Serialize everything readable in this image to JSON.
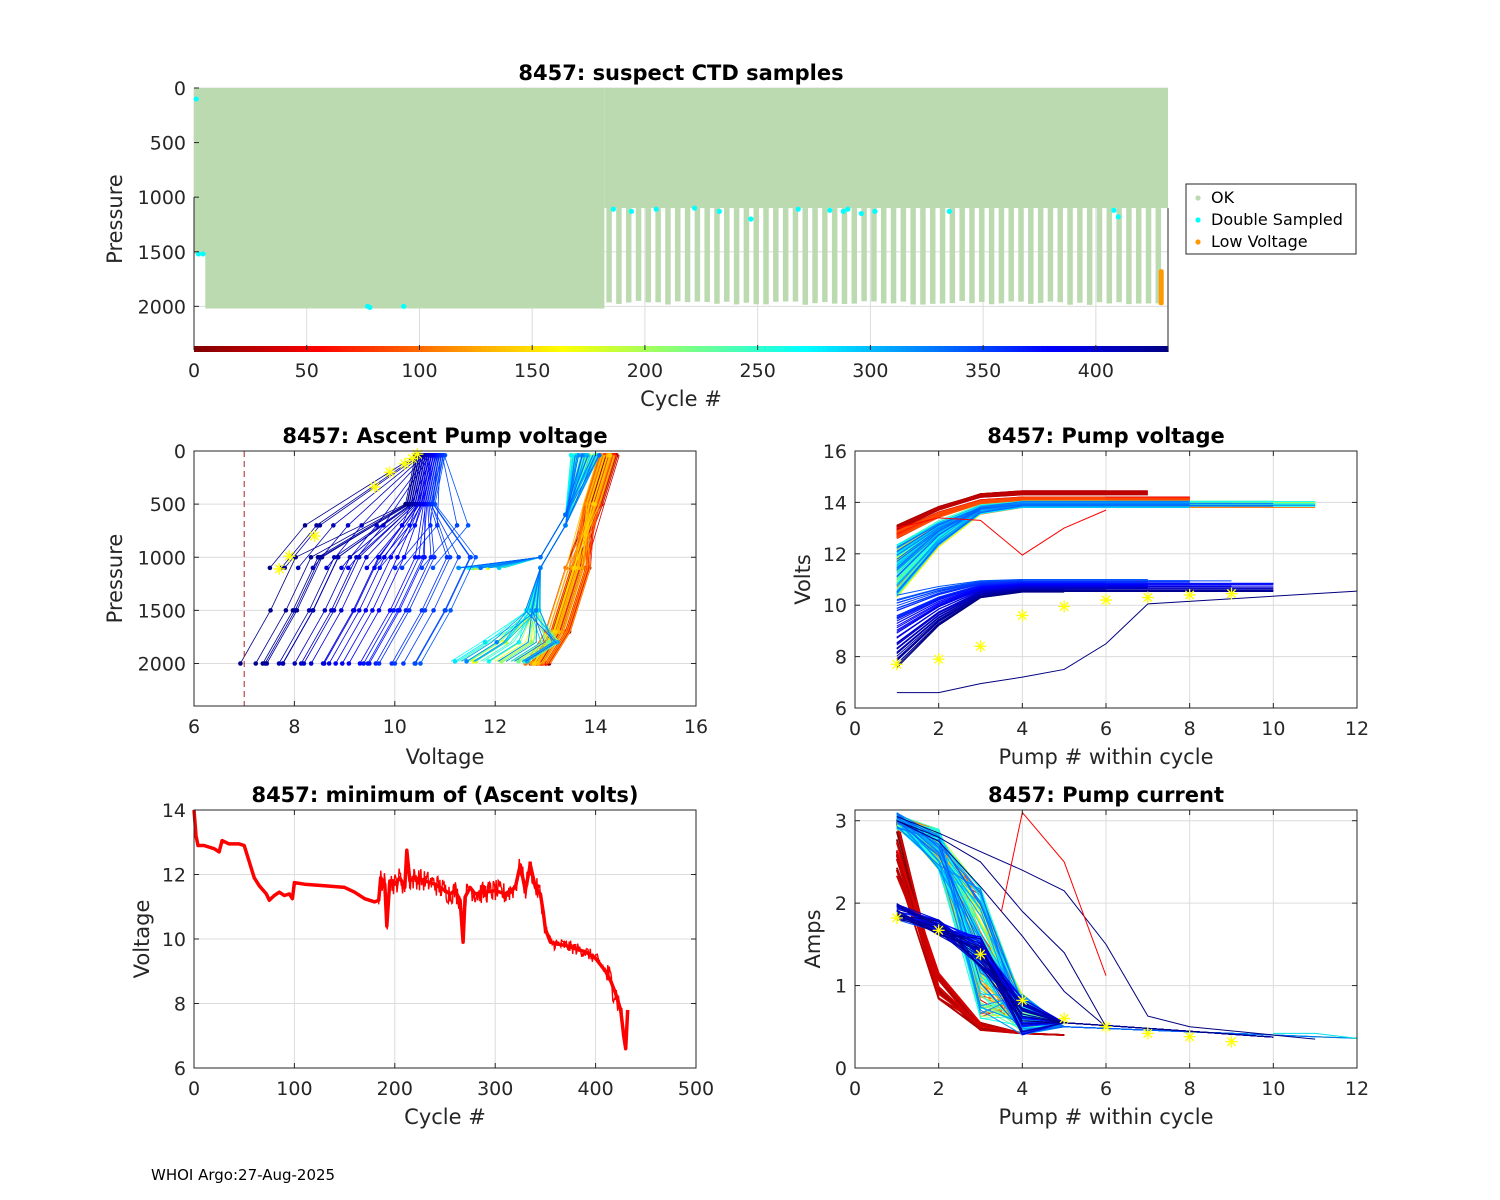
{
  "footer": "WHOI Argo:27-Aug-2025",
  "colors": {
    "ok": "#bcdab0",
    "double_sampled": "#00ffff",
    "low_voltage": "#ff9900",
    "grid": "#dcdcdc",
    "min_volts_line": "#ff0000",
    "threshold_line": "#b22222",
    "marker": "#ffff00"
  },
  "chart_data": [
    {
      "id": "suspect-ctd",
      "type": "scatter",
      "title": "8457: suspect CTD samples",
      "xlabel": "Cycle #",
      "ylabel": "Pressure",
      "xlim": [
        0,
        432
      ],
      "ylim": [
        0,
        2400
      ],
      "y_reversed": true,
      "xticks": [
        0,
        50,
        100,
        150,
        200,
        250,
        300,
        350,
        400
      ],
      "yticks": [
        0,
        500,
        1000,
        1500,
        2000
      ],
      "grid": true,
      "legend": {
        "placement": "outside-right",
        "entries": [
          "OK",
          "Double Sampled",
          "Low Voltage"
        ]
      },
      "colorbar": {
        "orientation": "horizontal",
        "colormap": "jet-reversed",
        "range": [
          0,
          432
        ]
      },
      "ok_profiles": {
        "deep_phase_cycles": [
          0,
          182
        ],
        "deep_max_pressure": 2020,
        "alternating_start_cycle": 184,
        "shallow_max_pressure": 1100,
        "deep_alt_max_pressure": 1990
      },
      "double_sampled_points": [
        {
          "cycle": 1,
          "pressure": 100
        },
        {
          "cycle": 2,
          "pressure": 1520
        },
        {
          "cycle": 4,
          "pressure": 1520
        },
        {
          "cycle": 77,
          "pressure": 2000
        },
        {
          "cycle": 78,
          "pressure": 2010
        },
        {
          "cycle": 93,
          "pressure": 2000
        },
        {
          "cycle": 186,
          "pressure": 1110
        },
        {
          "cycle": 194,
          "pressure": 1130
        },
        {
          "cycle": 205,
          "pressure": 1110
        },
        {
          "cycle": 222,
          "pressure": 1100
        },
        {
          "cycle": 233,
          "pressure": 1130
        },
        {
          "cycle": 247,
          "pressure": 1200
        },
        {
          "cycle": 268,
          "pressure": 1110
        },
        {
          "cycle": 282,
          "pressure": 1120
        },
        {
          "cycle": 288,
          "pressure": 1130
        },
        {
          "cycle": 290,
          "pressure": 1110
        },
        {
          "cycle": 296,
          "pressure": 1150
        },
        {
          "cycle": 302,
          "pressure": 1130
        },
        {
          "cycle": 335,
          "pressure": 1130
        },
        {
          "cycle": 408,
          "pressure": 1120
        },
        {
          "cycle": 410,
          "pressure": 1180
        }
      ],
      "low_voltage_points": {
        "cycle": 429,
        "pressure_range": [
          1660,
          1990
        ]
      }
    },
    {
      "id": "ascent-pump-voltage",
      "type": "line",
      "title": "8457: Ascent Pump voltage",
      "xlabel": "Voltage",
      "ylabel": "Pressure",
      "xlim": [
        6,
        16
      ],
      "ylim": [
        0,
        2400
      ],
      "y_reversed": true,
      "xticks": [
        6,
        8,
        10,
        12,
        14,
        16
      ],
      "yticks": [
        0,
        500,
        1000,
        1500,
        2000
      ],
      "grid": true,
      "threshold_voltage": 7,
      "series_groups": [
        {
          "name": "early cycles (dark red / red)",
          "bottom_voltage_range": [
            12.6,
            13.1
          ],
          "top_voltage_range": [
            14.1,
            14.5
          ]
        },
        {
          "name": "mid cycles (yellow-cyan)",
          "bottom_voltage_range": [
            11.1,
            12.8
          ],
          "top_voltage_range": [
            13.5,
            14.1
          ],
          "park_pressure": 1100
        },
        {
          "name": "late cycles (blue / navy)",
          "bottom_voltage_range": [
            6.6,
            10.4
          ],
          "top_voltage_range": [
            10.4,
            11.1
          ]
        }
      ],
      "markers": [
        {
          "voltage": 7.7,
          "pressure": 1110
        },
        {
          "voltage": 7.9,
          "pressure": 990
        },
        {
          "voltage": 8.4,
          "pressure": 800
        },
        {
          "voltage": 9.6,
          "pressure": 340
        },
        {
          "voltage": 9.9,
          "pressure": 200
        },
        {
          "voltage": 10.2,
          "pressure": 120
        },
        {
          "voltage": 10.35,
          "pressure": 70
        },
        {
          "voltage": 10.45,
          "pressure": 30
        }
      ]
    },
    {
      "id": "pump-voltage",
      "type": "line",
      "title": "8457: Pump voltage",
      "xlabel": "Pump # within cycle",
      "ylabel": "Volts",
      "xlim": [
        0,
        12
      ],
      "ylim": [
        6,
        16
      ],
      "xticks": [
        0,
        2,
        4,
        6,
        8,
        10,
        12
      ],
      "yticks": [
        6,
        8,
        10,
        12,
        14,
        16
      ],
      "grid": true,
      "series_groups": [
        {
          "name": "early cycles",
          "start_range": [
            12.8,
            13.1
          ],
          "plateau": 14.4,
          "max_pump": 7
        },
        {
          "name": "red cycles",
          "start_range": [
            12.6,
            12.9
          ],
          "plateau": 14.1,
          "max_pump": 8
        },
        {
          "name": "mid cycles",
          "start_range": [
            10.2,
            12.4
          ],
          "plateau": 13.9,
          "max_pump": 12
        },
        {
          "name": "late cycles",
          "start_range": [
            7.3,
            10.2
          ],
          "plateau": 10.9,
          "max_pump": 11
        },
        {
          "name": "final cycle",
          "start_range": [
            6.6,
            6.6
          ],
          "plateau": 10.5,
          "max_pump": 12
        }
      ],
      "markers": [
        {
          "pump": 1,
          "volts": 7.7
        },
        {
          "pump": 2,
          "volts": 7.9
        },
        {
          "pump": 3,
          "volts": 8.4
        },
        {
          "pump": 4,
          "volts": 9.6
        },
        {
          "pump": 5,
          "volts": 9.95
        },
        {
          "pump": 6,
          "volts": 10.2
        },
        {
          "pump": 7,
          "volts": 10.3
        },
        {
          "pump": 8,
          "volts": 10.4
        },
        {
          "pump": 9,
          "volts": 10.45
        }
      ],
      "outlier": {
        "pumps": [
          1,
          2,
          3,
          4,
          5,
          6
        ],
        "volts": [
          13.0,
          13.4,
          13.3,
          11.95,
          13.0,
          13.7
        ]
      }
    },
    {
      "id": "min-ascent-volts",
      "type": "line",
      "title": "8457: minimum of (Ascent volts)",
      "xlabel": "Cycle #",
      "ylabel": "Voltage",
      "xlim": [
        0,
        500
      ],
      "ylim": [
        6,
        14
      ],
      "xticks": [
        0,
        100,
        200,
        300,
        400,
        500
      ],
      "yticks": [
        6,
        8,
        10,
        12,
        14
      ],
      "grid": true,
      "x": [
        0,
        2,
        4,
        10,
        20,
        25,
        28,
        35,
        45,
        50,
        55,
        60,
        65,
        72,
        75,
        80,
        85,
        90,
        95,
        98,
        100,
        110,
        130,
        150,
        160,
        170,
        180,
        184,
        186,
        190,
        192,
        195,
        200,
        205,
        210,
        212,
        215,
        220,
        230,
        240,
        250,
        255,
        260,
        265,
        268,
        270,
        275,
        280,
        290,
        300,
        310,
        320,
        325,
        330,
        335,
        340,
        345,
        348,
        350,
        355,
        360,
        370,
        380,
        390,
        400,
        410,
        415,
        420,
        425,
        428,
        430,
        432
      ],
      "y": [
        14.0,
        13.2,
        12.9,
        12.9,
        12.8,
        12.7,
        13.05,
        12.95,
        12.95,
        12.9,
        12.4,
        11.9,
        11.65,
        11.4,
        11.2,
        11.35,
        11.45,
        11.35,
        11.4,
        11.25,
        11.75,
        11.7,
        11.65,
        11.6,
        11.45,
        11.25,
        11.15,
        11.2,
        11.9,
        11.7,
        10.4,
        11.8,
        11.7,
        11.9,
        11.6,
        12.75,
        11.8,
        11.9,
        11.8,
        11.7,
        11.5,
        11.4,
        11.5,
        11.2,
        9.9,
        11.3,
        11.6,
        11.4,
        11.45,
        11.5,
        11.4,
        11.6,
        12.3,
        11.5,
        12.3,
        11.6,
        11.4,
        10.8,
        10.3,
        9.9,
        9.85,
        9.8,
        9.7,
        9.6,
        9.4,
        9.0,
        8.7,
        8.3,
        7.8,
        7.0,
        6.6,
        7.8
      ],
      "band_halfwidth_after_cycle_350": 0.2
    },
    {
      "id": "pump-current",
      "type": "line",
      "title": "8457: Pump current",
      "xlabel": "Pump # within cycle",
      "ylabel": "Amps",
      "xlim": [
        0,
        12
      ],
      "ylim": [
        0,
        3.13
      ],
      "xticks": [
        0,
        2,
        4,
        6,
        8,
        10,
        12
      ],
      "yticks": [
        0,
        1,
        2,
        3
      ],
      "grid": true,
      "series_groups": [
        {
          "name": "early cycles",
          "start_range": [
            2.3,
            3.0
          ],
          "at_pump_3": [
            0.45,
            0.55
          ],
          "max_pump": 5
        },
        {
          "name": "mid cycles",
          "start_range": [
            2.9,
            3.1
          ],
          "at_pump_4": [
            0.4,
            0.9
          ],
          "max_pump": 12
        },
        {
          "name": "late cycles",
          "start_range": [
            1.8,
            2.0
          ],
          "at_pump_4": [
            0.4,
            0.8
          ],
          "max_pump": 11
        }
      ],
      "markers": [
        {
          "pump": 1,
          "amps": 1.82
        },
        {
          "pump": 2,
          "amps": 1.67
        },
        {
          "pump": 3,
          "amps": 1.38
        },
        {
          "pump": 4,
          "amps": 0.82
        },
        {
          "pump": 5,
          "amps": 0.6
        },
        {
          "pump": 6,
          "amps": 0.5
        },
        {
          "pump": 7,
          "amps": 0.42
        },
        {
          "pump": 8,
          "amps": 0.38
        },
        {
          "pump": 9,
          "amps": 0.32
        }
      ],
      "outlier": {
        "pumps": [
          3.5,
          4,
          5,
          6
        ],
        "amps": [
          1.9,
          3.1,
          2.5,
          1.12
        ]
      }
    }
  ]
}
